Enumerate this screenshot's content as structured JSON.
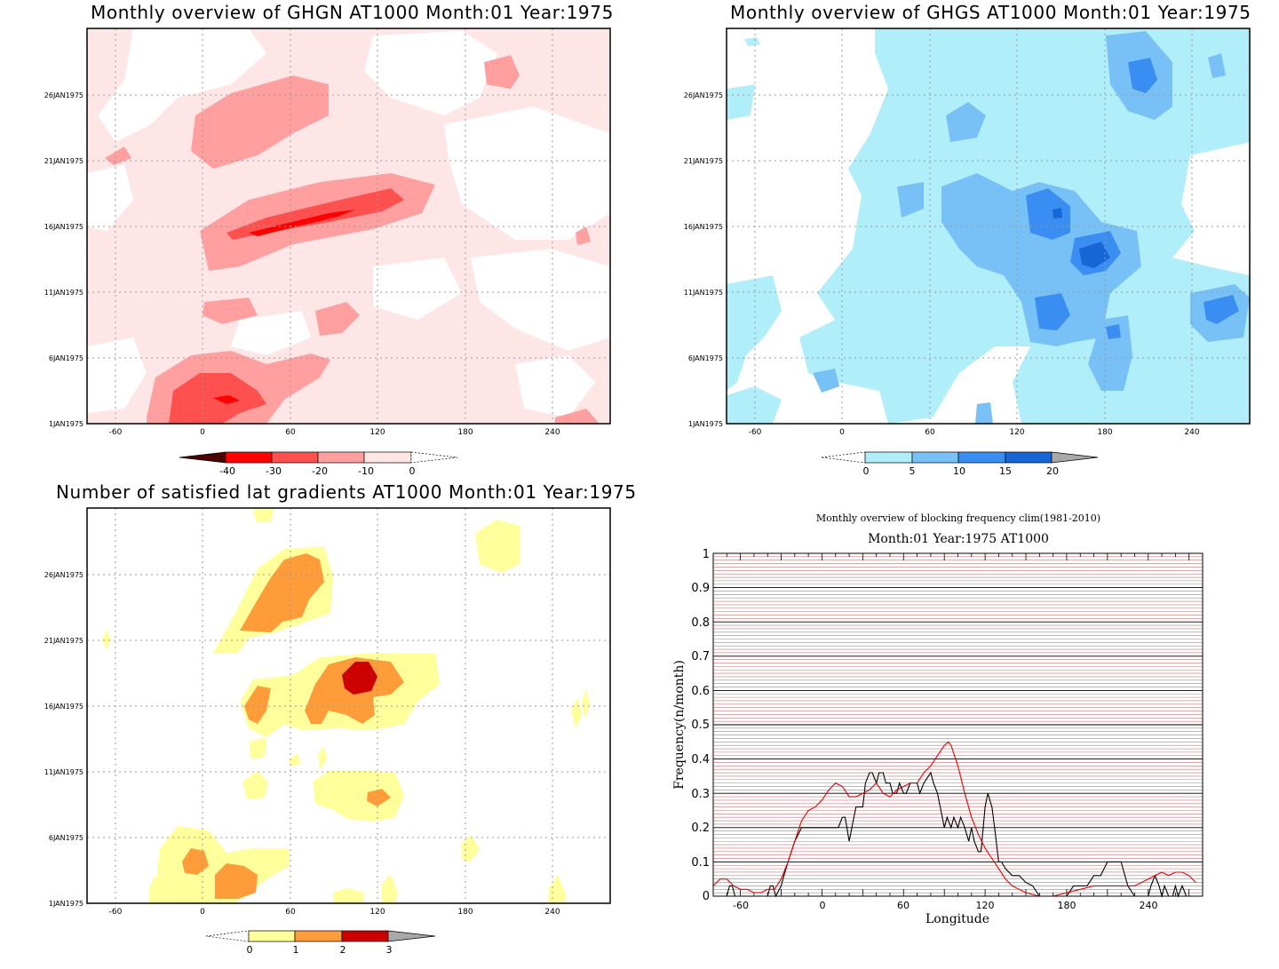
{
  "colors": {
    "frame": "#000000",
    "grid": "#9a9a9a",
    "red_scale": [
      "#4d0000",
      "#ff0000",
      "#ff5050",
      "#ff9f9f",
      "#ffe6e6",
      "#ffffff"
    ],
    "blue_scale": [
      "#ffffff",
      "#b0eefa",
      "#78c1f7",
      "#3a8ef2",
      "#1766d6",
      "#a8a8a8"
    ],
    "yellow_scale": [
      "#ffffff",
      "#ffff9c",
      "#ff9c3a",
      "#cc0000",
      "#a8a8a8"
    ],
    "freq_black": "#000000",
    "freq_red": "#e00000",
    "freq_minor_grid": "#c87878"
  },
  "panels": {
    "ghgn": {
      "title": "Monthly overview of GHGN AT1000 Month:01 Year:1975",
      "x_ticks": [
        "-60",
        "0",
        "60",
        "120",
        "180",
        "240"
      ],
      "y_ticks": [
        "1JAN1975",
        "6JAN1975",
        "11JAN1975",
        "16JAN1975",
        "21JAN1975",
        "26JAN1975"
      ],
      "colorbar_labels": [
        "-40",
        "-30",
        "-20",
        "-10",
        "0"
      ]
    },
    "ghgs": {
      "title": "Monthly overview of GHGS AT1000 Month:01 Year:1975",
      "x_ticks": [
        "-60",
        "0",
        "60",
        "120",
        "180",
        "240"
      ],
      "y_ticks": [
        "1JAN1975",
        "6JAN1975",
        "11JAN1975",
        "16JAN1975",
        "21JAN1975",
        "26JAN1975"
      ],
      "colorbar_labels": [
        "0",
        "5",
        "10",
        "15",
        "20"
      ]
    },
    "nsat": {
      "title": "Number of satisfied lat gradients AT1000 Month:01 Year:1975",
      "x_ticks": [
        "-60",
        "0",
        "60",
        "120",
        "180",
        "240"
      ],
      "y_ticks": [
        "1JAN1975",
        "6JAN1975",
        "11JAN1975",
        "16JAN1975",
        "21JAN1975",
        "26JAN1975"
      ],
      "colorbar_labels": [
        "0",
        "1",
        "2",
        "3"
      ]
    },
    "freq": {
      "title": "Monthly overview of blocking frequency clim(1981-2010)",
      "subtitle": "Month:01 Year:1975  AT1000",
      "xlabel": "Longitude",
      "ylabel": "Frequency(n/month)",
      "x_ticks": [
        "-60",
        "0",
        "60",
        "120",
        "180",
        "240"
      ],
      "y_ticks": [
        "0",
        "0.1",
        "0.2",
        "0.3",
        "0.4",
        "0.5",
        "0.6",
        "0.7",
        "0.8",
        "0.9",
        "1"
      ]
    }
  },
  "chart_data": [
    {
      "type": "heatmap",
      "title": "Monthly overview of GHGN AT1000 Month:01 Year:1975",
      "x_ticks": [
        -60,
        0,
        60,
        120,
        180,
        240
      ],
      "xlim": [
        -80,
        280
      ],
      "y_ticks": [
        "1JAN1975",
        "6JAN1975",
        "11JAN1975",
        "16JAN1975",
        "21JAN1975",
        "26JAN1975"
      ],
      "ylim": [
        1,
        31
      ],
      "levels": [
        -40,
        -30,
        -20,
        -10,
        0
      ],
      "grid": true
    },
    {
      "type": "heatmap",
      "title": "Monthly overview of GHGS AT1000 Month:01 Year:1975",
      "x_ticks": [
        -60,
        0,
        60,
        120,
        180,
        240
      ],
      "xlim": [
        -80,
        280
      ],
      "y_ticks": [
        "1JAN1975",
        "6JAN1975",
        "11JAN1975",
        "16JAN1975",
        "21JAN1975",
        "26JAN1975"
      ],
      "ylim": [
        1,
        31
      ],
      "levels": [
        0,
        5,
        10,
        15,
        20
      ],
      "grid": true
    },
    {
      "type": "heatmap",
      "title": "Number of satisfied lat gradients AT1000 Month:01 Year:1975",
      "x_ticks": [
        -60,
        0,
        60,
        120,
        180,
        240
      ],
      "xlim": [
        -80,
        280
      ],
      "y_ticks": [
        "1JAN1975",
        "6JAN1975",
        "11JAN1975",
        "16JAN1975",
        "21JAN1975",
        "26JAN1975"
      ],
      "ylim": [
        1,
        31
      ],
      "levels": [
        0,
        1,
        2,
        3
      ],
      "grid": true
    },
    {
      "type": "line",
      "title": "Monthly overview of blocking frequency clim(1981-2010)",
      "subtitle": "Month:01 Year:1975  AT1000",
      "xlabel": "Longitude",
      "ylabel": "Frequency(n/month)",
      "xlim": [
        -80,
        280
      ],
      "ylim": [
        0,
        1
      ],
      "x_ticks": [
        -60,
        0,
        60,
        120,
        180,
        240
      ],
      "y_ticks": [
        0,
        0.1,
        0.2,
        0.3,
        0.4,
        0.5,
        0.6,
        0.7,
        0.8,
        0.9,
        1
      ],
      "grid": true,
      "series": [
        {
          "color": "#000000",
          "x": [
            -80,
            -70,
            -68,
            -66,
            -64,
            -40,
            -38,
            -36,
            -34,
            -30,
            -28,
            -25,
            -20,
            -15,
            -12,
            -10,
            -5,
            0,
            5,
            10,
            12,
            15,
            17,
            20,
            22,
            25,
            27,
            30,
            32,
            35,
            37,
            40,
            42,
            45,
            47,
            50,
            52,
            55,
            57,
            60,
            62,
            65,
            70,
            72,
            75,
            80,
            82,
            85,
            87,
            90,
            92,
            95,
            97,
            100,
            102,
            105,
            108,
            110,
            112,
            115,
            117,
            120,
            122,
            125,
            127,
            130,
            132,
            135,
            140,
            145,
            150,
            155,
            160,
            165,
            170,
            175,
            180,
            185,
            190,
            195,
            200,
            205,
            210,
            215,
            220,
            225,
            230,
            235,
            240,
            242,
            245,
            248,
            250,
            252,
            255,
            258,
            260,
            262,
            265,
            268,
            270
          ],
          "y": [
            0,
            0,
            0.03,
            0.03,
            0,
            0,
            0.03,
            0.03,
            0,
            0.03,
            0.06,
            0.1,
            0.16,
            0.2,
            0.2,
            0.2,
            0.2,
            0.2,
            0.2,
            0.2,
            0.2,
            0.23,
            0.23,
            0.16,
            0.2,
            0.26,
            0.26,
            0.26,
            0.33,
            0.36,
            0.36,
            0.33,
            0.36,
            0.36,
            0.33,
            0.33,
            0.3,
            0.3,
            0.33,
            0.3,
            0.3,
            0.33,
            0.33,
            0.3,
            0.33,
            0.36,
            0.33,
            0.3,
            0.26,
            0.2,
            0.23,
            0.2,
            0.23,
            0.2,
            0.23,
            0.2,
            0.16,
            0.2,
            0.16,
            0.13,
            0.13,
            0.26,
            0.3,
            0.26,
            0.2,
            0.1,
            0.1,
            0.08,
            0.06,
            0.06,
            0.04,
            0.03,
            0,
            0,
            0,
            0,
            0,
            0.03,
            0.03,
            0.03,
            0.06,
            0.06,
            0.1,
            0.1,
            0.1,
            0.03,
            0,
            0,
            0,
            0.03,
            0.06,
            0.03,
            0,
            0.03,
            0,
            0,
            0.03,
            0,
            0.03,
            0,
            0
          ]
        },
        {
          "color": "#e00000",
          "x": [
            -80,
            -75,
            -70,
            -65,
            -60,
            -55,
            -50,
            -45,
            -40,
            -35,
            -30,
            -25,
            -20,
            -15,
            -10,
            -5,
            0,
            5,
            10,
            15,
            20,
            25,
            30,
            35,
            40,
            45,
            50,
            55,
            60,
            65,
            70,
            75,
            80,
            85,
            90,
            93,
            95,
            100,
            105,
            110,
            115,
            120,
            125,
            130,
            135,
            140,
            150,
            160,
            170,
            180,
            190,
            200,
            210,
            220,
            230,
            240,
            245,
            250,
            255,
            260,
            265,
            270,
            275
          ],
          "y": [
            0.03,
            0.05,
            0.05,
            0.03,
            0.02,
            0.02,
            0.01,
            0.01,
            0.02,
            0.02,
            0.05,
            0.1,
            0.16,
            0.22,
            0.25,
            0.26,
            0.28,
            0.31,
            0.33,
            0.32,
            0.29,
            0.29,
            0.3,
            0.31,
            0.33,
            0.3,
            0.29,
            0.31,
            0.32,
            0.33,
            0.33,
            0.36,
            0.38,
            0.41,
            0.44,
            0.45,
            0.44,
            0.38,
            0.3,
            0.23,
            0.18,
            0.14,
            0.11,
            0.08,
            0.05,
            0.03,
            0.01,
            0,
            0,
            0.01,
            0.02,
            0.03,
            0.03,
            0.03,
            0.03,
            0.05,
            0.06,
            0.07,
            0.06,
            0.07,
            0.07,
            0.06,
            0.04
          ]
        }
      ]
    }
  ]
}
